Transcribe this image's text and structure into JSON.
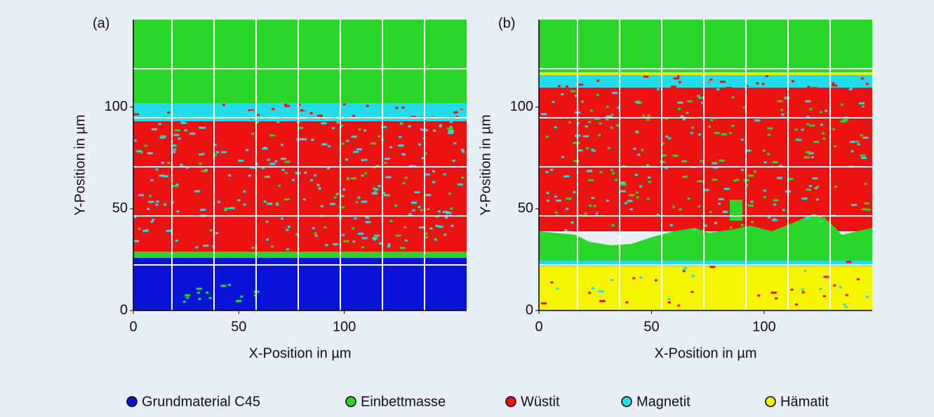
{
  "panels": [
    {
      "label": "(a)",
      "x_label": "X-Position in µm",
      "y_label": "Y-Position in µm",
      "xlim": [
        0,
        158
      ],
      "ylim": [
        0,
        143
      ],
      "xticks": [
        0,
        50,
        100
      ],
      "yticks": [
        0,
        50,
        100
      ]
    },
    {
      "label": "(b)",
      "x_label": "X-Position in µm",
      "y_label": "Y-Position in µm",
      "xlim": [
        0,
        148
      ],
      "ylim": [
        0,
        143
      ],
      "xticks": [
        0,
        50,
        100
      ],
      "yticks": [
        0,
        50,
        100
      ]
    }
  ],
  "legend": [
    {
      "name": "Grundmaterial C45",
      "color": "#0a14d8"
    },
    {
      "name": "Einbettmasse",
      "color": "#2bd62b"
    },
    {
      "name": "Wüstit",
      "color": "#ee1111"
    },
    {
      "name": "Magnetit",
      "color": "#22dde8"
    },
    {
      "name": "Hämatit",
      "color": "#f5f500"
    }
  ]
}
